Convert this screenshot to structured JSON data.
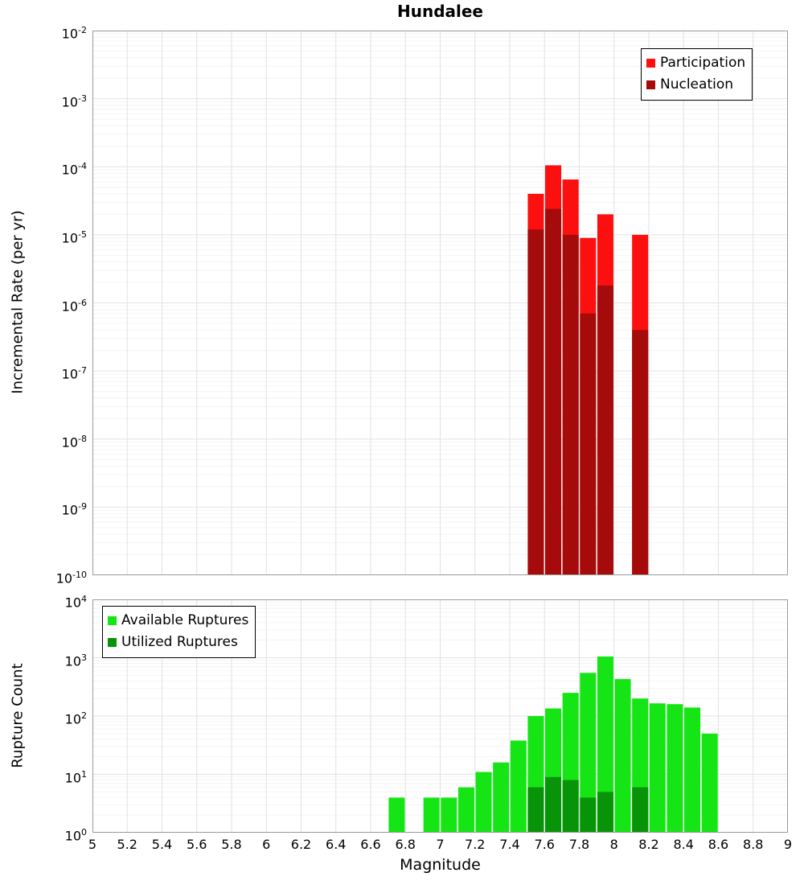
{
  "title": "Hundalee",
  "xlabel": "Magnitude",
  "x_tick_labels": [
    "5",
    "5.2",
    "5.4",
    "5.6",
    "5.8",
    "6",
    "6.2",
    "6.4",
    "6.6",
    "6.8",
    "7",
    "7.2",
    "7.4",
    "7.6",
    "7.8",
    "8",
    "8.2",
    "8.4",
    "8.6",
    "8.8",
    "9"
  ],
  "chart_data": [
    {
      "type": "bar",
      "title": "Hundalee",
      "ylabel": "Incremental Rate (per yr)",
      "xlabel": "Magnitude",
      "x_range": [
        5,
        9
      ],
      "x_tick_step": 0.2,
      "y_log_range": [
        -10,
        -2
      ],
      "y_tick_exponents": [
        -2,
        -3,
        -4,
        -5,
        -6,
        -7,
        -8,
        -9,
        -10
      ],
      "bin_width": 0.1,
      "grid": true,
      "legend_position": "top-right",
      "series": [
        {
          "name": "Participation",
          "color": "#fb0f0f",
          "x": [
            7.55,
            7.65,
            7.75,
            7.85,
            7.95,
            8.15
          ],
          "values": [
            4e-05,
            0.000105,
            6.5e-05,
            9e-06,
            2e-05,
            1e-05
          ]
        },
        {
          "name": "Nucleation",
          "color": "#a60b0b",
          "x": [
            7.55,
            7.65,
            7.75,
            7.85,
            7.95,
            8.15
          ],
          "values": [
            1.2e-05,
            2.4e-05,
            1e-05,
            7e-07,
            1.8e-06,
            4e-07
          ]
        }
      ]
    },
    {
      "type": "bar",
      "title": "",
      "ylabel": "Rupture Count",
      "xlabel": "Magnitude",
      "x_range": [
        5,
        9
      ],
      "x_tick_step": 0.2,
      "y_log_range": [
        0,
        4
      ],
      "y_tick_exponents": [
        4,
        3,
        2,
        1,
        0
      ],
      "bin_width": 0.1,
      "grid": true,
      "legend_position": "top-left",
      "series": [
        {
          "name": "Available Ruptures",
          "color": "#15e515",
          "x": [
            6.75,
            6.95,
            7.05,
            7.15,
            7.25,
            7.35,
            7.45,
            7.55,
            7.65,
            7.75,
            7.85,
            7.95,
            8.05,
            8.15,
            8.25,
            8.35,
            8.45,
            8.55
          ],
          "values": [
            4,
            4,
            4,
            6,
            11,
            16,
            38,
            100,
            135,
            250,
            550,
            1050,
            430,
            200,
            165,
            160,
            140,
            50
          ]
        },
        {
          "name": "Utilized Ruptures",
          "color": "#089408",
          "x": [
            7.55,
            7.65,
            7.75,
            7.85,
            7.95,
            8.15
          ],
          "values": [
            6,
            9,
            8,
            4,
            5,
            6
          ]
        }
      ]
    }
  ]
}
